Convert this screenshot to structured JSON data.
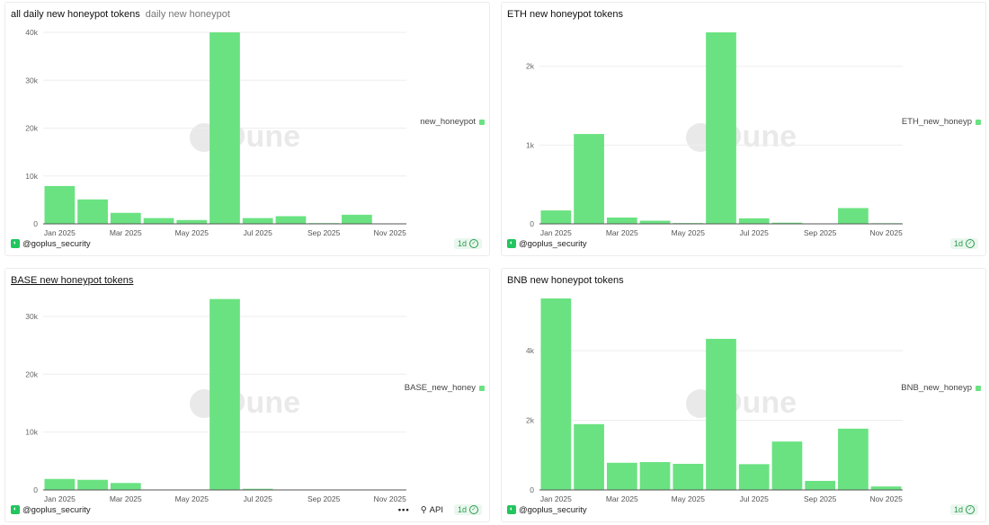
{
  "colors": {
    "bar": "#6ae281",
    "grid": "#eeeeee",
    "axis": "#555555"
  },
  "footer": {
    "author": "@goplus_security",
    "refresh": "1d",
    "more": "•••",
    "api": "API"
  },
  "watermark": "Dune",
  "chart_data": [
    {
      "type": "bar",
      "title": "all daily new honeypot tokens",
      "subtitle": "daily new honeypot",
      "legend": "new_honeypot",
      "legend_position": "right",
      "grid": true,
      "categories": [
        "Jan 2025",
        "Feb 2025",
        "Mar 2025",
        "Apr 2025",
        "May 2025",
        "Jun 2025",
        "Jul 2025",
        "Aug 2025",
        "Sep 2025",
        "Oct 2025",
        "Nov 2025"
      ],
      "values": [
        7900,
        5100,
        2300,
        1200,
        800,
        40000,
        1200,
        1600,
        150,
        1900,
        50
      ],
      "x_ticks": [
        "Jan 2025",
        "Mar 2025",
        "May 2025",
        "Jul 2025",
        "Sep 2025",
        "Nov 2025"
      ],
      "y_ticks": [
        {
          "v": 0,
          "l": "0"
        },
        {
          "v": 10000,
          "l": "10k"
        },
        {
          "v": 20000,
          "l": "20k"
        },
        {
          "v": 30000,
          "l": "30k"
        },
        {
          "v": 40000,
          "l": "40k"
        }
      ],
      "ylim": [
        0,
        40000
      ]
    },
    {
      "type": "bar",
      "title": "ETH new honeypot tokens",
      "subtitle": "",
      "legend": "ETH_new_honeyp",
      "legend_position": "right",
      "grid": true,
      "categories": [
        "Jan 2025",
        "Feb 2025",
        "Mar 2025",
        "Apr 2025",
        "May 2025",
        "Jun 2025",
        "Jul 2025",
        "Aug 2025",
        "Sep 2025",
        "Oct 2025",
        "Nov 2025"
      ],
      "values": [
        170,
        1140,
        80,
        40,
        10,
        2430,
        70,
        15,
        5,
        200,
        8
      ],
      "x_ticks": [
        "Jan 2025",
        "Mar 2025",
        "May 2025",
        "Jul 2025",
        "Sep 2025",
        "Nov 2025"
      ],
      "y_ticks": [
        {
          "v": 0,
          "l": "0"
        },
        {
          "v": 1000,
          "l": "1k"
        },
        {
          "v": 2000,
          "l": "2k"
        }
      ],
      "ylim": [
        0,
        2430
      ]
    },
    {
      "type": "bar",
      "title": "BASE new honeypot tokens",
      "subtitle": "",
      "legend": "BASE_new_honey",
      "legend_position": "right",
      "grid": true,
      "categories": [
        "Jan 2025",
        "Feb 2025",
        "Mar 2025",
        "Apr 2025",
        "May 2025",
        "Jun 2025",
        "Jul 2025",
        "Aug 2025",
        "Sep 2025",
        "Oct 2025",
        "Nov 2025"
      ],
      "values": [
        1900,
        1750,
        1200,
        50,
        50,
        33000,
        200,
        50,
        20,
        50,
        20
      ],
      "x_ticks": [
        "Jan 2025",
        "Mar 2025",
        "May 2025",
        "Jul 2025",
        "Sep 2025",
        "Nov 2025"
      ],
      "y_ticks": [
        {
          "v": 0,
          "l": "0"
        },
        {
          "v": 10000,
          "l": "10k"
        },
        {
          "v": 20000,
          "l": "20k"
        },
        {
          "v": 30000,
          "l": "30k"
        }
      ],
      "ylim": [
        0,
        33100
      ]
    },
    {
      "type": "bar",
      "title": "BNB new honeypot tokens",
      "subtitle": "",
      "legend": "BNB_new_honeyp",
      "legend_position": "right",
      "grid": true,
      "categories": [
        "Jan 2025",
        "Feb 2025",
        "Mar 2025",
        "Apr 2025",
        "May 2025",
        "Jun 2025",
        "Jul 2025",
        "Aug 2025",
        "Sep 2025",
        "Oct 2025",
        "Nov 2025"
      ],
      "values": [
        5500,
        1890,
        780,
        800,
        750,
        4340,
        740,
        1390,
        260,
        1760,
        100
      ],
      "x_ticks": [
        "Jan 2025",
        "Mar 2025",
        "May 2025",
        "Jul 2025",
        "Sep 2025",
        "Nov 2025"
      ],
      "y_ticks": [
        {
          "v": 0,
          "l": "0"
        },
        {
          "v": 2000,
          "l": "2k"
        },
        {
          "v": 4000,
          "l": "4k"
        }
      ],
      "ylim": [
        0,
        5500
      ]
    }
  ]
}
